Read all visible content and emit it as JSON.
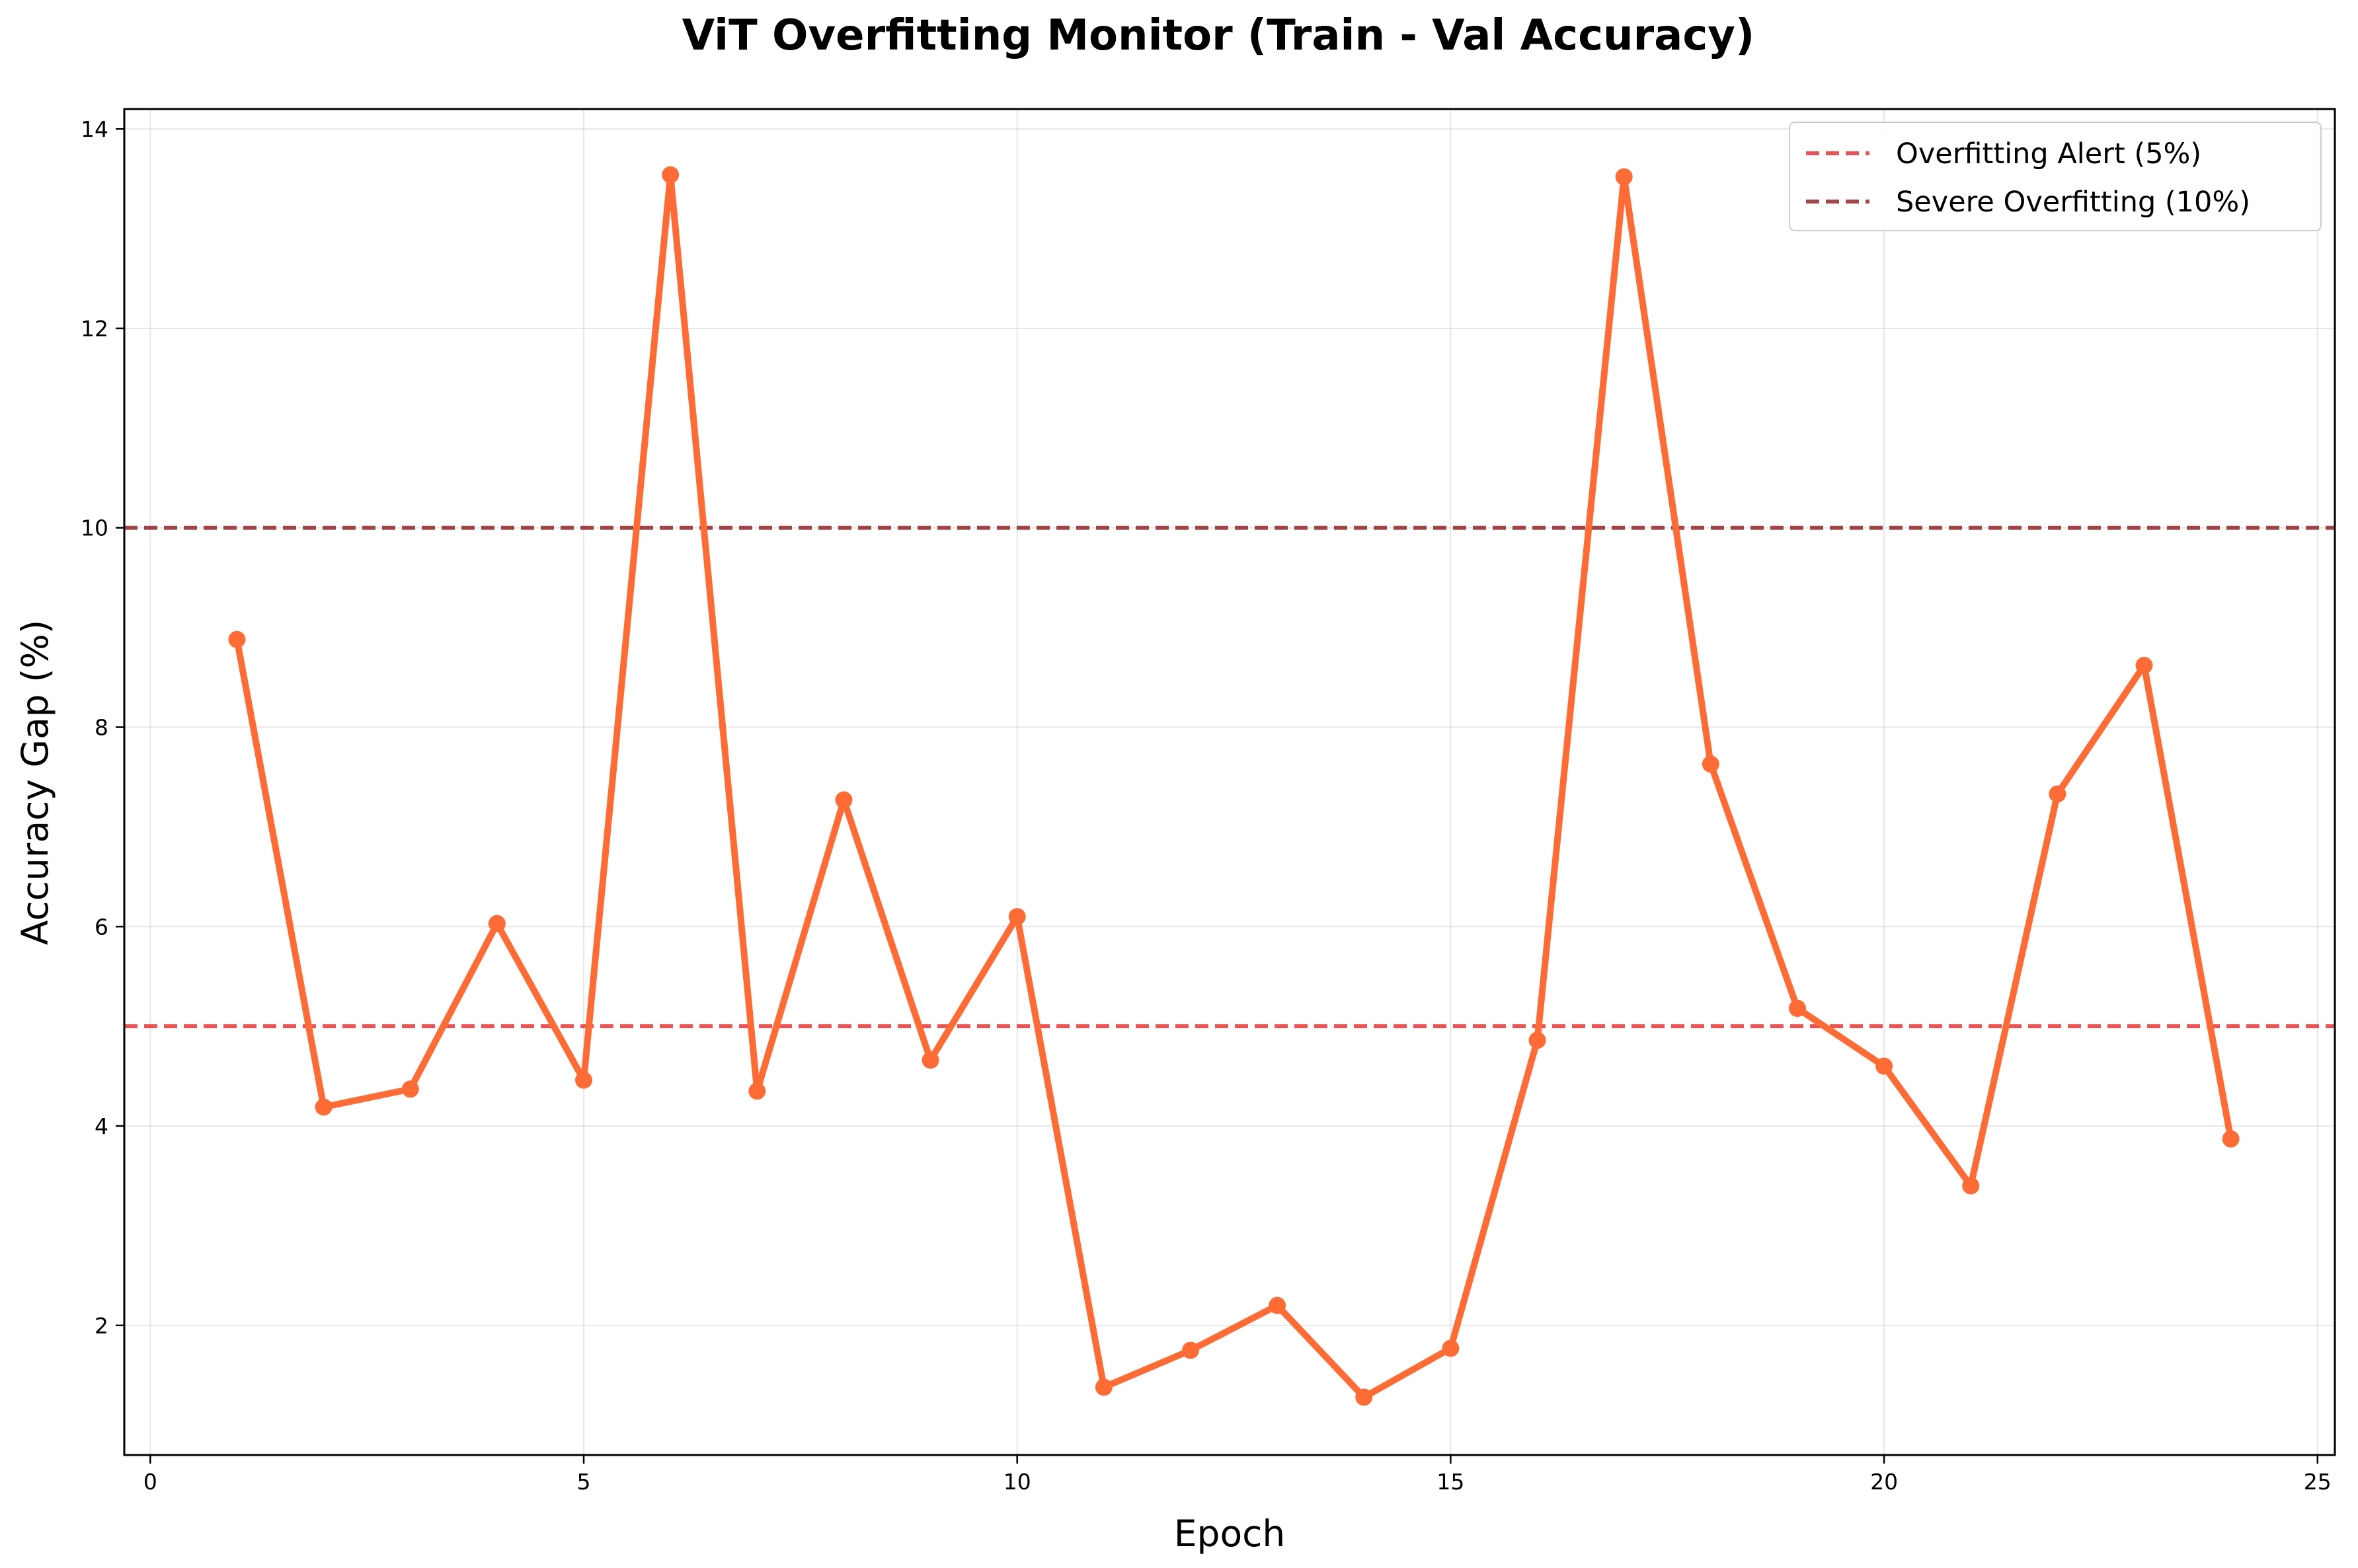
{
  "chart_data": {
    "type": "line",
    "title": "ViT Overfitting Monitor (Train - Val Accuracy)",
    "xlabel": "Epoch",
    "ylabel": "Accuracy Gap (%)",
    "xlim": [
      -0.3,
      25.2
    ],
    "ylim": [
      0.7,
      14.2
    ],
    "xticks": [
      0,
      5,
      10,
      15,
      20,
      25
    ],
    "yticks": [
      2,
      4,
      6,
      8,
      10,
      12,
      14
    ],
    "grid": true,
    "legend_position": "top-right",
    "series": [
      {
        "color": "#ff6b35",
        "x": [
          1,
          2,
          3,
          4,
          5,
          6,
          7,
          8,
          9,
          10,
          11,
          12,
          13,
          14,
          15,
          16,
          17,
          18,
          19,
          20,
          21,
          22,
          23,
          24
        ],
        "y": [
          8.88,
          4.19,
          4.37,
          6.03,
          4.46,
          13.54,
          4.35,
          7.27,
          4.66,
          6.1,
          1.38,
          1.75,
          2.2,
          1.28,
          1.77,
          4.86,
          13.52,
          7.63,
          5.18,
          4.6,
          3.4,
          7.33,
          8.62,
          3.87
        ]
      }
    ],
    "thresholds": [
      {
        "name": "Overfitting Alert (5%)",
        "value": 5,
        "color": "#e8292a"
      },
      {
        "name": "Severe Overfitting (10%)",
        "value": 10,
        "color": "#8b1a1a"
      }
    ]
  }
}
